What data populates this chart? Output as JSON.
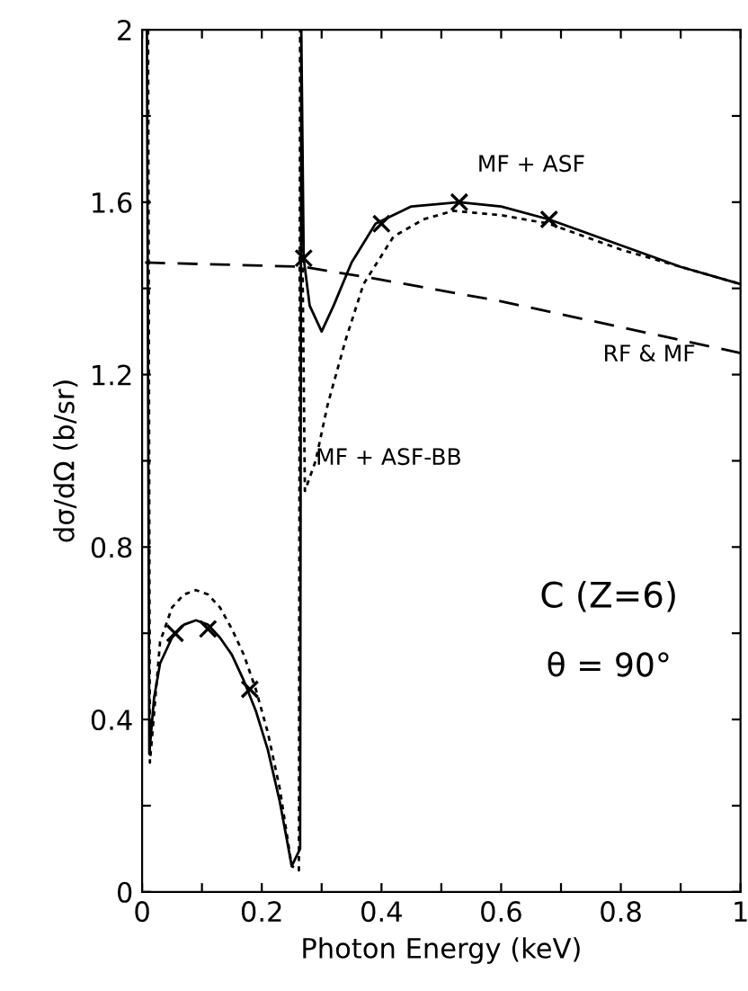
{
  "chart_data": {
    "type": "line",
    "xlabel": "Photon Energy (keV)",
    "ylabel": "dσ/dΩ (b/sr)",
    "xlim": [
      0,
      1
    ],
    "ylim": [
      0,
      2
    ],
    "xticks": [
      0,
      {
        "value": 0.1,
        "label": null
      },
      0.2,
      {
        "value": 0.3,
        "label": null
      },
      0.4,
      {
        "value": 0.5,
        "label": null
      },
      0.6,
      {
        "value": 0.7,
        "label": null
      },
      0.8,
      {
        "value": 0.9,
        "label": null
      },
      1
    ],
    "yticks": [
      0,
      {
        "value": 0.2,
        "label": null
      },
      0.4,
      {
        "value": 0.6,
        "label": null
      },
      0.8,
      {
        "value": 1.0,
        "label": null
      },
      1.2,
      {
        "value": 1.4,
        "label": null
      },
      1.6,
      {
        "value": 1.8,
        "label": null
      },
      2
    ],
    "grid": false,
    "legend": false,
    "series": [
      {
        "name": "MF + ASF",
        "color": "#000000",
        "line_style": "solid",
        "marker": "none",
        "x": [
          0.008,
          0.012,
          0.02,
          0.03,
          0.05,
          0.07,
          0.09,
          0.11,
          0.13,
          0.15,
          0.17,
          0.19,
          0.21,
          0.23,
          0.25,
          0.264,
          0.266,
          0.27,
          0.28,
          0.3,
          0.32,
          0.35,
          0.39,
          0.45,
          0.53,
          0.6,
          0.68,
          0.8,
          0.9,
          1.0
        ],
        "values": [
          2.0,
          0.32,
          0.45,
          0.53,
          0.59,
          0.62,
          0.63,
          0.62,
          0.59,
          0.55,
          0.49,
          0.42,
          0.33,
          0.21,
          0.06,
          0.1,
          2.0,
          1.47,
          1.36,
          1.3,
          1.36,
          1.46,
          1.55,
          1.59,
          1.6,
          1.59,
          1.56,
          1.5,
          1.45,
          1.41
        ]
      },
      {
        "name": "MF + ASF-BB",
        "color": "#000000",
        "line_style": "dotted",
        "marker": "none",
        "x": [
          0.01,
          0.013,
          0.03,
          0.05,
          0.07,
          0.09,
          0.11,
          0.13,
          0.15,
          0.17,
          0.19,
          0.21,
          0.23,
          0.25,
          0.262,
          0.264,
          0.272,
          0.29,
          0.31,
          0.34,
          0.37,
          0.42,
          0.47,
          0.52,
          0.6,
          0.68,
          0.8,
          0.9,
          1.0
        ],
        "values": [
          2.0,
          0.3,
          0.58,
          0.66,
          0.69,
          0.7,
          0.69,
          0.66,
          0.61,
          0.55,
          0.47,
          0.37,
          0.24,
          0.06,
          0.05,
          2.0,
          0.93,
          1.0,
          1.13,
          1.28,
          1.41,
          1.52,
          1.56,
          1.58,
          1.57,
          1.55,
          1.49,
          1.45,
          1.41
        ]
      },
      {
        "name": "RF & MF",
        "color": "#000000",
        "line_style": "dashed",
        "marker": "none",
        "x": [
          0.005,
          0.27,
          0.4,
          0.6,
          0.8,
          1.0
        ],
        "values": [
          1.46,
          1.45,
          1.42,
          1.37,
          1.31,
          1.25
        ]
      },
      {
        "type": "scatter",
        "color": "#000000",
        "marker": "cross",
        "x": [
          0.055,
          0.11,
          0.18,
          0.27,
          0.4,
          0.53,
          0.68
        ],
        "values": [
          0.6,
          0.61,
          0.47,
          1.47,
          1.55,
          1.6,
          1.56
        ]
      }
    ],
    "annotations": [
      "C (Z=6)",
      "θ = 90°"
    ]
  }
}
